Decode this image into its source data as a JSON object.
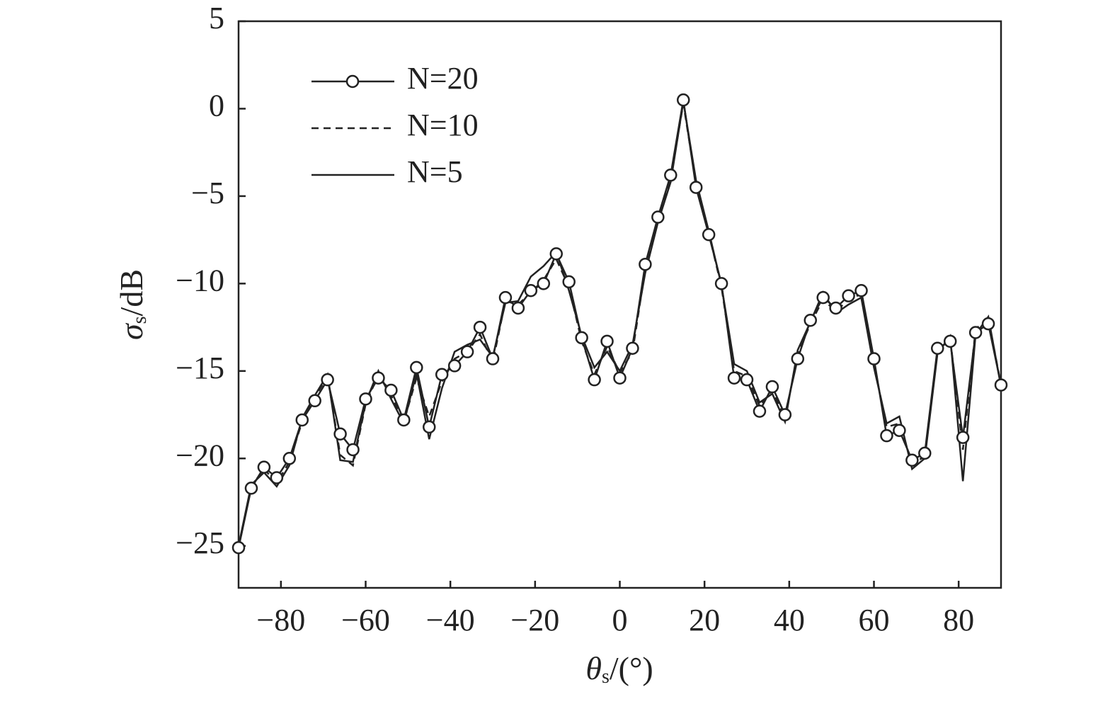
{
  "chart_data": {
    "type": "line",
    "ylabel": {
      "symbol": "σ",
      "subscript": "s",
      "unit": "/dB"
    },
    "xlabel": {
      "symbol": "θ",
      "subscript": "s",
      "unit": "/(°)"
    },
    "x": [
      -90,
      -87,
      -84,
      -81,
      -78,
      -75,
      -72,
      -69,
      -66,
      -63,
      -60,
      -57,
      -54,
      -51,
      -48,
      -45,
      -42,
      -39,
      -36,
      -33,
      -30,
      -27,
      -24,
      -21,
      -18,
      -15,
      -12,
      -9,
      -6,
      -3,
      0,
      3,
      6,
      9,
      12,
      15,
      18,
      21,
      24,
      27,
      30,
      33,
      36,
      39,
      42,
      45,
      48,
      51,
      54,
      57,
      60,
      63,
      66,
      69,
      72,
      75,
      78,
      81,
      84,
      87,
      90
    ],
    "series": [
      {
        "name": "N=20",
        "color": "#222222",
        "marker": "circle",
        "dash": false,
        "values": [
          -25.1,
          -21.7,
          -20.5,
          -21.1,
          -20.0,
          -17.8,
          -16.7,
          -15.5,
          -18.6,
          -19.5,
          -16.6,
          -15.4,
          -16.1,
          -17.8,
          -14.8,
          -18.2,
          -15.2,
          -14.7,
          -13.9,
          -12.5,
          -14.3,
          -10.8,
          -11.4,
          -10.4,
          -10.0,
          -8.3,
          -9.9,
          -13.1,
          -15.5,
          -13.3,
          -15.4,
          -13.7,
          -8.9,
          -6.2,
          -3.8,
          0.5,
          -4.5,
          -7.2,
          -10.0,
          -15.4,
          -15.5,
          -17.3,
          -15.9,
          -17.5,
          -14.3,
          -12.1,
          -10.8,
          -11.4,
          -10.7,
          -10.4,
          -14.3,
          -18.7,
          -18.4,
          -20.1,
          -19.7,
          -13.7,
          -13.3,
          -18.8,
          -12.8,
          -12.3,
          -15.8
        ]
      },
      {
        "name": "N=10",
        "color": "#222222",
        "marker": "none",
        "dash": true,
        "values": [
          -25.1,
          -21.6,
          -20.6,
          -21.4,
          -20.2,
          -17.9,
          -16.5,
          -15.3,
          -19.8,
          -20.4,
          -16.9,
          -15.2,
          -16.4,
          -17.9,
          -15.4,
          -17.6,
          -15.6,
          -14.3,
          -13.9,
          -12.9,
          -14.5,
          -11.0,
          -11.2,
          -10.5,
          -9.8,
          -8.6,
          -10.2,
          -13.3,
          -15.2,
          -13.6,
          -15.1,
          -13.9,
          -9.2,
          -6.4,
          -4.0,
          0.3,
          -4.3,
          -7.1,
          -10.2,
          -15.0,
          -15.3,
          -17.0,
          -16.1,
          -17.7,
          -14.0,
          -12.3,
          -10.9,
          -11.6,
          -10.9,
          -10.6,
          -14.6,
          -18.2,
          -18.0,
          -20.3,
          -19.9,
          -13.9,
          -13.1,
          -19.5,
          -12.6,
          -12.0,
          -15.8
        ]
      },
      {
        "name": "N=5",
        "color": "#222222",
        "marker": "none",
        "dash": false,
        "values": [
          -25.0,
          -21.5,
          -20.8,
          -21.6,
          -20.4,
          -17.7,
          -16.4,
          -15.2,
          -20.1,
          -20.2,
          -16.8,
          -15.0,
          -16.6,
          -18.0,
          -15.1,
          -18.9,
          -16.0,
          -13.9,
          -13.5,
          -13.2,
          -14.2,
          -11.1,
          -11.0,
          -9.6,
          -9.0,
          -8.2,
          -10.4,
          -13.0,
          -14.8,
          -13.9,
          -15.0,
          -13.5,
          -9.4,
          -6.5,
          -4.2,
          0.4,
          -4.1,
          -7.0,
          -10.1,
          -14.6,
          -15.0,
          -16.8,
          -16.3,
          -17.9,
          -13.8,
          -12.2,
          -10.5,
          -11.7,
          -11.2,
          -10.8,
          -14.8,
          -18.0,
          -17.6,
          -20.6,
          -20.0,
          -14.0,
          -13.0,
          -21.3,
          -12.9,
          -11.9,
          -15.9
        ]
      }
    ],
    "xlim": [
      -90,
      90
    ],
    "xticks": [
      {
        "value": -80,
        "label": "−80"
      },
      {
        "value": -60,
        "label": "−60"
      },
      {
        "value": -40,
        "label": "−40"
      },
      {
        "value": -20,
        "label": "−20"
      },
      0,
      20,
      40,
      60,
      80
    ],
    "ylim": [
      -27.4,
      5
    ],
    "yticks": [
      {
        "value": -25,
        "label": "−25"
      },
      {
        "value": -20,
        "label": "−20"
      },
      {
        "value": -15,
        "label": "−15"
      },
      {
        "value": -10,
        "label": "−10"
      },
      {
        "value": -5,
        "label": "−5"
      },
      0,
      5
    ],
    "grid": false,
    "legend": "upper-left"
  }
}
